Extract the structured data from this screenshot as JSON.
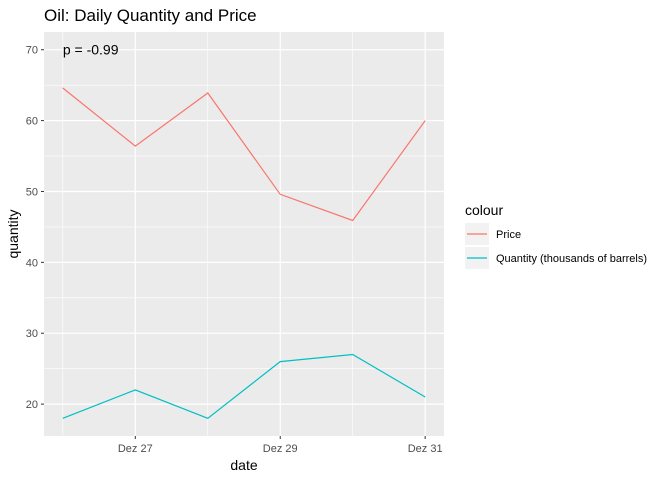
{
  "chart_data": {
    "type": "line",
    "title": "Oil: Daily Quantity and Price",
    "xlabel": "date",
    "ylabel": "quantity",
    "x": [
      0,
      1,
      2,
      3,
      4,
      5
    ],
    "x_tick_labels": [
      {
        "x": 1,
        "label": "Dez 27"
      },
      {
        "x": 3,
        "label": "Dez 29"
      },
      {
        "x": 5,
        "label": "Dez 31"
      }
    ],
    "y_ticks": [
      20,
      30,
      40,
      50,
      60,
      70
    ],
    "xlim": [
      -0.26,
      5.26
    ],
    "ylim": [
      15.5,
      72.5
    ],
    "grid": true,
    "legend": {
      "title": "colour",
      "position": "right"
    },
    "series": [
      {
        "name": "Price",
        "color": "#F8766D",
        "values": [
          64.6,
          56.4,
          63.9,
          49.6,
          45.9,
          60.0
        ]
      },
      {
        "name": "Quantity (thousands of barrels)",
        "color": "#00BFC4",
        "values": [
          18,
          22,
          18,
          26,
          27,
          21
        ]
      }
    ],
    "annotation": {
      "text": "p = -0.99",
      "x": 0,
      "y": 70
    }
  }
}
